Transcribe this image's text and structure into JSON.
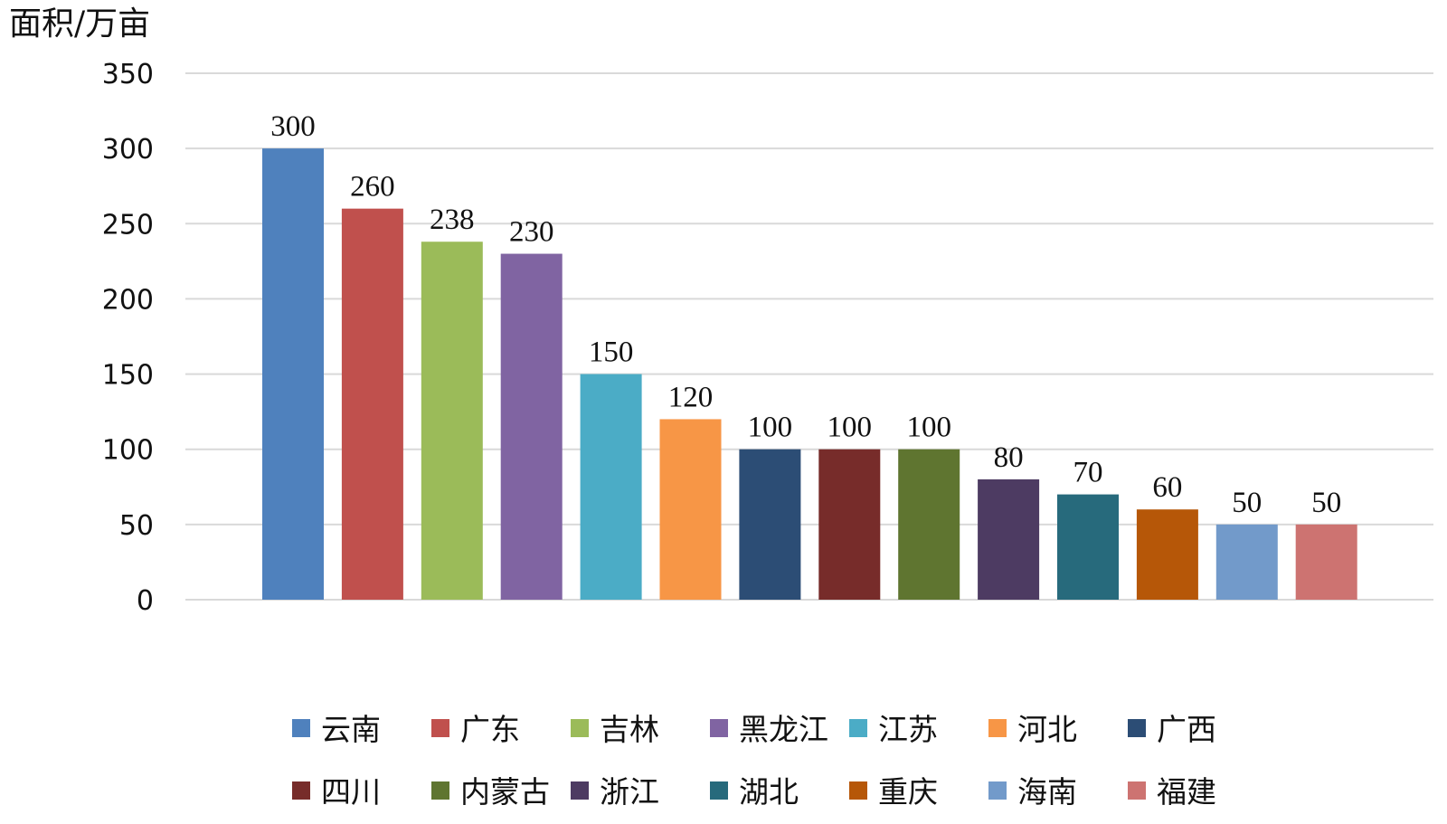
{
  "chart_data": {
    "type": "bar",
    "ylabel": "面积/万亩",
    "xlabel": "",
    "title": "",
    "ylim": [
      0,
      350
    ],
    "yticks": [
      0,
      50,
      100,
      150,
      200,
      250,
      300,
      350
    ],
    "grid": true,
    "legend_position": "bottom",
    "categories": [
      "云南",
      "广东",
      "吉林",
      "黑龙江",
      "江苏",
      "河北",
      "广西",
      "四川",
      "内蒙古",
      "浙江",
      "湖北",
      "重庆",
      "海南",
      "福建"
    ],
    "values": [
      300,
      260,
      238,
      230,
      150,
      120,
      100,
      100,
      100,
      80,
      70,
      60,
      50,
      50
    ],
    "colors": [
      "#4f81bd",
      "#c0504d",
      "#9bbb59",
      "#8064a2",
      "#4bacc6",
      "#f79646",
      "#2c4d75",
      "#772c2a",
      "#5f7530",
      "#4d3b62",
      "#276a7c",
      "#b65708",
      "#729aca",
      "#cd7371"
    ]
  }
}
